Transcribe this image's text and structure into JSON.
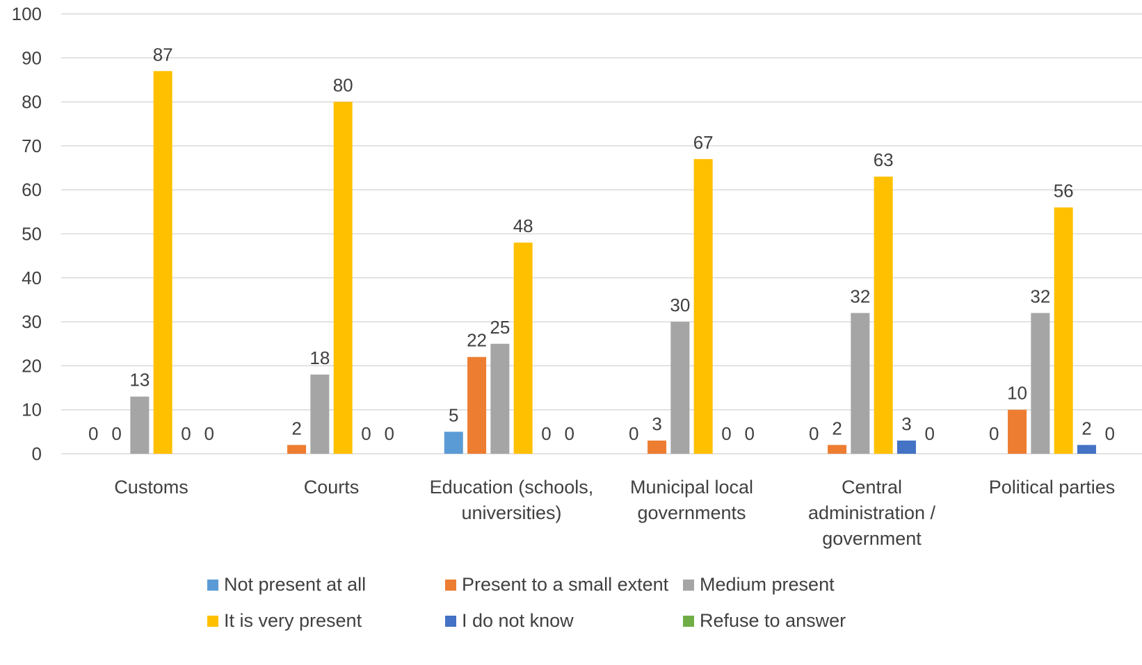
{
  "chart_data": {
    "type": "bar",
    "title": "",
    "xlabel": "",
    "ylabel": "",
    "ylim": [
      0,
      100
    ],
    "yticks": [
      0,
      10,
      20,
      30,
      40,
      50,
      60,
      70,
      80,
      90,
      100
    ],
    "grid": true,
    "legend_position": "bottom",
    "categories": [
      [
        "Customs"
      ],
      [
        "Courts"
      ],
      [
        "Education (schools,",
        "universities)"
      ],
      [
        "Municipal local",
        "governments"
      ],
      [
        "Central",
        "administration /",
        "government"
      ],
      [
        "Political parties"
      ]
    ],
    "series": [
      {
        "name": "Not present at all",
        "color": "#5B9BD5",
        "values": [
          0,
          null,
          5,
          0,
          0,
          0
        ]
      },
      {
        "name": "Present to a small extent",
        "color": "#ED7D31",
        "values": [
          0,
          2,
          22,
          3,
          2,
          10
        ]
      },
      {
        "name": "Medium present",
        "color": "#A5A5A5",
        "values": [
          13,
          18,
          25,
          30,
          32,
          32
        ]
      },
      {
        "name": "It is very present",
        "color": "#FFC000",
        "values": [
          87,
          80,
          48,
          67,
          63,
          56
        ]
      },
      {
        "name": "I do not know",
        "color": "#4472C4",
        "values": [
          0,
          0,
          0,
          0,
          3,
          2
        ]
      },
      {
        "name": "Refuse to answer",
        "color": "#70AD47",
        "values": [
          0,
          0,
          0,
          0,
          0,
          0
        ]
      }
    ]
  }
}
